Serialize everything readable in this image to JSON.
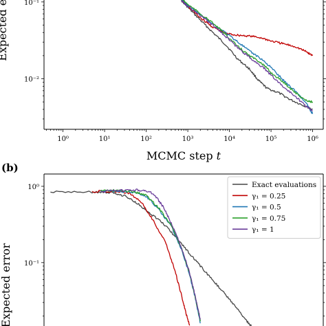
{
  "chart_data": [
    {
      "type": "line",
      "panel_label": "",
      "xlabel": "MCMC step",
      "xlabel_var": "t",
      "ylabel": "Expected er",
      "x_scale": "log",
      "y_scale": "log",
      "xlim": [
        0.35,
        1800000
      ],
      "ylim": [
        0.0022,
        0.125
      ],
      "x_tick_exponents": [
        0,
        1,
        2,
        3,
        4,
        5,
        6
      ],
      "y_tick_exponents": [
        -2,
        -1
      ],
      "series": [
        {
          "color": "#444444",
          "points": [
            [
              700,
              0.105
            ],
            [
              1000,
              0.085
            ],
            [
              2000,
              0.058
            ],
            [
              4000,
              0.04
            ],
            [
              8000,
              0.028
            ],
            [
              16000,
              0.018
            ],
            [
              30000,
              0.0135
            ],
            [
              50000,
              0.0095
            ],
            [
              80000,
              0.0075
            ],
            [
              150000,
              0.0066
            ],
            [
              300000,
              0.0053
            ],
            [
              600000,
              0.0045
            ],
            [
              1000000,
              0.004
            ]
          ]
        },
        {
          "color": "#c00000",
          "points": [
            [
              700,
              0.105
            ],
            [
              1000,
              0.088
            ],
            [
              2000,
              0.062
            ],
            [
              4000,
              0.047
            ],
            [
              8000,
              0.039
            ],
            [
              15000,
              0.037
            ],
            [
              30000,
              0.036
            ],
            [
              60000,
              0.034
            ],
            [
              100000,
              0.031
            ],
            [
              200000,
              0.0285
            ],
            [
              400000,
              0.026
            ],
            [
              700000,
              0.0225
            ],
            [
              1000000,
              0.02
            ]
          ]
        },
        {
          "color": "#1f77b4",
          "points": [
            [
              700,
              0.108
            ],
            [
              1000,
              0.09
            ],
            [
              2000,
              0.068
            ],
            [
              4000,
              0.052
            ],
            [
              8000,
              0.04
            ],
            [
              15000,
              0.031
            ],
            [
              30000,
              0.023
            ],
            [
              60000,
              0.018
            ],
            [
              100000,
              0.014
            ],
            [
              200000,
              0.0095
            ],
            [
              400000,
              0.0068
            ],
            [
              700000,
              0.0048
            ],
            [
              1000000,
              0.0035
            ]
          ]
        },
        {
          "color": "#2ca02c",
          "points": [
            [
              700,
              0.11
            ],
            [
              1000,
              0.093
            ],
            [
              2000,
              0.07
            ],
            [
              4000,
              0.053
            ],
            [
              8000,
              0.038
            ],
            [
              15000,
              0.027
            ],
            [
              30000,
              0.02
            ],
            [
              60000,
              0.016
            ],
            [
              100000,
              0.012
            ],
            [
              200000,
              0.009
            ],
            [
              400000,
              0.0065
            ],
            [
              700000,
              0.0052
            ],
            [
              1000000,
              0.005
            ]
          ]
        },
        {
          "color": "#6a3d9a",
          "points": [
            [
              700,
              0.105
            ],
            [
              1000,
              0.088
            ],
            [
              2000,
              0.066
            ],
            [
              4000,
              0.05
            ],
            [
              8000,
              0.036
            ],
            [
              15000,
              0.026
            ],
            [
              30000,
              0.019
            ],
            [
              60000,
              0.0145
            ],
            [
              100000,
              0.0112
            ],
            [
              200000,
              0.0078
            ],
            [
              400000,
              0.0058
            ],
            [
              700000,
              0.0044
            ],
            [
              1000000,
              0.0038
            ]
          ]
        }
      ]
    },
    {
      "type": "line",
      "panel_label": "(b)",
      "ylabel": "Expected error",
      "x_scale": "log",
      "y_scale": "log",
      "xlim": [
        0.35,
        1800000
      ],
      "ylim": [
        0.0125,
        1.45
      ],
      "y_tick_exponents": [
        -1,
        0
      ],
      "legend": {
        "location": "upper right"
      },
      "series": [
        {
          "name": "Exact evaluations",
          "color": "#444444",
          "points": [
            [
              0.5,
              0.84
            ],
            [
              5,
              0.84
            ],
            [
              15,
              0.82
            ],
            [
              30,
              0.75
            ],
            [
              60,
              0.6
            ],
            [
              120,
              0.45
            ],
            [
              250,
              0.33
            ],
            [
              500,
              0.22
            ],
            [
              1000,
              0.14
            ],
            [
              2000,
              0.09
            ],
            [
              4000,
              0.059
            ],
            [
              8000,
              0.038
            ],
            [
              15000,
              0.025
            ],
            [
              25000,
              0.0175
            ],
            [
              40000,
              0.0135
            ]
          ]
        },
        {
          "name": "γ₁ = 0.25",
          "color": "#c00000",
          "points": [
            [
              5,
              0.86
            ],
            [
              15,
              0.86
            ],
            [
              40,
              0.82
            ],
            [
              80,
              0.6
            ],
            [
              150,
              0.35
            ],
            [
              300,
              0.18
            ],
            [
              500,
              0.075
            ],
            [
              700,
              0.038
            ],
            [
              900,
              0.022
            ],
            [
              1100,
              0.015
            ]
          ]
        },
        {
          "name": "γ₁ = 0.5",
          "color": "#1f77b4",
          "points": [
            [
              8,
              0.87
            ],
            [
              20,
              0.87
            ],
            [
              50,
              0.84
            ],
            [
              100,
              0.74
            ],
            [
              200,
              0.5
            ],
            [
              400,
              0.3
            ],
            [
              700,
              0.15
            ],
            [
              1100,
              0.07
            ],
            [
              1500,
              0.035
            ],
            [
              2000,
              0.016
            ]
          ]
        },
        {
          "name": "γ₁ = 0.75",
          "color": "#2ca02c",
          "points": [
            [
              8,
              0.88
            ],
            [
              20,
              0.88
            ],
            [
              50,
              0.85
            ],
            [
              100,
              0.76
            ],
            [
              200,
              0.52
            ],
            [
              400,
              0.31
            ],
            [
              700,
              0.155
            ],
            [
              1100,
              0.072
            ],
            [
              1500,
              0.036
            ],
            [
              2000,
              0.017
            ]
          ]
        },
        {
          "name": "γ₁ = 1",
          "color": "#6a3d9a",
          "points": [
            [
              8,
              0.86
            ],
            [
              20,
              0.87
            ],
            [
              50,
              0.9
            ],
            [
              90,
              0.88
            ],
            [
              150,
              0.8
            ],
            [
              250,
              0.55
            ],
            [
              400,
              0.33
            ],
            [
              700,
              0.16
            ],
            [
              1100,
              0.074
            ],
            [
              1500,
              0.037
            ],
            [
              2000,
              0.018
            ]
          ]
        }
      ]
    }
  ]
}
